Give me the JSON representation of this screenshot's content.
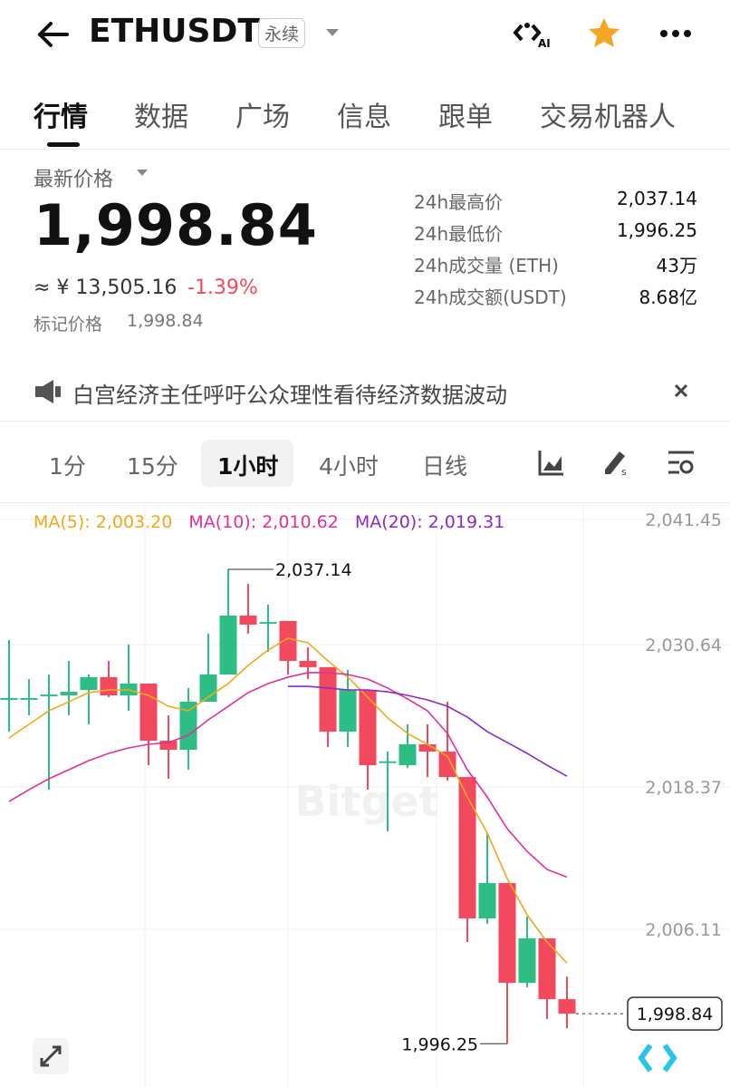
{
  "header": {
    "title": "ETHUSDT",
    "tag": "永续"
  },
  "tabs": [
    "行情",
    "数据",
    "广场",
    "信息",
    "跟单",
    "交易机器人"
  ],
  "price": {
    "label": "最新价格",
    "last": "1,998.84",
    "cny": "≈ ¥ 13,505.16",
    "change": "-1.39%",
    "mark_label": "标记价格",
    "mark_value": "1,998.84"
  },
  "stats": [
    [
      "24h最高价",
      "2,037.14"
    ],
    [
      "24h最低价",
      "1,996.25"
    ],
    [
      "24h成交量 (ETH)",
      "43万"
    ],
    [
      "24h成交额(USDT)",
      "8.68亿"
    ]
  ],
  "news": "白宫经济主任呼吁公众理性看待经济数据波动",
  "intervals": [
    "1分",
    "15分",
    "1小时",
    "4小时",
    "日线"
  ],
  "chart_data": {
    "type": "candlestick",
    "watermark": "Bitget",
    "ylim": [
      1993.3,
      2042.85
    ],
    "yticks": [
      {
        "value": 2041.45,
        "label": "2,041.45"
      },
      {
        "value": 2030.64,
        "label": "2,030.64"
      },
      {
        "value": 2018.37,
        "label": "2,018.37"
      },
      {
        "value": 2006.11,
        "label": "2,006.11"
      }
    ],
    "grid": true,
    "up_color": "#2ebd85",
    "down_color": "#f2495e",
    "candles": [
      {
        "open": 2025.97,
        "high": 2031.05,
        "low": 2023.15,
        "close": 2026.05
      },
      {
        "open": 2025.97,
        "high": 2027.69,
        "low": 2024.56,
        "close": 2026.05
      },
      {
        "open": 2026.28,
        "high": 2028.08,
        "low": 2018.15,
        "close": 2026.35
      },
      {
        "open": 2026.28,
        "high": 2029.25,
        "low": 2024.56,
        "close": 2026.59
      },
      {
        "open": 2026.75,
        "high": 2028.08,
        "low": 2023.78,
        "close": 2027.85
      },
      {
        "open": 2027.85,
        "high": 2029.25,
        "low": 2026.13,
        "close": 2026.28
      },
      {
        "open": 2026.28,
        "high": 2030.66,
        "low": 2024.95,
        "close": 2027.3
      },
      {
        "open": 2027.3,
        "high": 2027.3,
        "low": 2020.26,
        "close": 2022.37
      },
      {
        "open": 2022.37,
        "high": 2024.56,
        "low": 2019.09,
        "close": 2021.59
      },
      {
        "open": 2021.59,
        "high": 2026.91,
        "low": 2019.87,
        "close": 2025.73
      },
      {
        "open": 2025.73,
        "high": 2031.6,
        "low": 2025.73,
        "close": 2028.08
      },
      {
        "open": 2028.08,
        "high": 2037.14,
        "low": 2028.08,
        "close": 2033.16
      },
      {
        "open": 2033.16,
        "high": 2035.9,
        "low": 2031.6,
        "close": 2032.38
      },
      {
        "open": 2032.54,
        "high": 2034.1,
        "low": 2030.03,
        "close": 2032.6
      },
      {
        "open": 2032.69,
        "high": 2032.69,
        "low": 2028.08,
        "close": 2029.25
      },
      {
        "open": 2029.25,
        "high": 2030.43,
        "low": 2027.69,
        "close": 2028.71
      },
      {
        "open": 2028.71,
        "high": 2028.71,
        "low": 2021.83,
        "close": 2023.15
      },
      {
        "open": 2023.15,
        "high": 2028.47,
        "low": 2021.83,
        "close": 2026.75
      },
      {
        "open": 2026.75,
        "high": 2026.75,
        "low": 2018.15,
        "close": 2020.26
      },
      {
        "open": 2020.5,
        "high": 2021.43,
        "low": 2014.55,
        "close": 2020.6
      },
      {
        "open": 2020.26,
        "high": 2023.78,
        "low": 2020.03,
        "close": 2022.06
      },
      {
        "open": 2022.06,
        "high": 2023.78,
        "low": 2019.24,
        "close": 2021.43
      },
      {
        "open": 2021.43,
        "high": 2025.73,
        "low": 2018.93,
        "close": 2019.24
      },
      {
        "open": 2019.24,
        "high": 2019.24,
        "low": 2005.02,
        "close": 2007.05
      },
      {
        "open": 2007.05,
        "high": 2014.4,
        "low": 2006.58,
        "close": 2010.1
      },
      {
        "open": 2010.1,
        "high": 2010.1,
        "low": 1996.25,
        "close": 2001.5
      },
      {
        "open": 2001.5,
        "high": 2007.2,
        "low": 2001.11,
        "close": 2005.33
      },
      {
        "open": 2005.33,
        "high": 2005.33,
        "low": 1998.37,
        "close": 2000.09
      },
      {
        "open": 2000.09,
        "high": 2002.04,
        "low": 1997.59,
        "close": 1998.84
      }
    ],
    "series": [
      {
        "name": "MA(5): 2,003.20",
        "color": "#f0a81c",
        "values": [
          2022.61,
          2023.78,
          2024.95,
          2025.73,
          2026.52,
          2026.75,
          2026.75,
          2026.28,
          2025.34,
          2024.95,
          2026.13,
          2027.3,
          2028.86,
          2030.19,
          2031.21,
          2030.82,
          2029.25,
          2027.85,
          2026.13,
          2024.33,
          2023.0,
          2022.06,
          2021.04,
          2017.52,
          2014.4,
          2010.49,
          2007.36,
          2005.02,
          2003.2
        ]
      },
      {
        "name": "MA(10): 2,010.62",
        "color": "#e0309a",
        "values": [
          2017.13,
          2018.15,
          2019.09,
          2019.87,
          2020.65,
          2021.28,
          2021.75,
          2022.06,
          2022.22,
          2022.84,
          2024.17,
          2025.34,
          2026.52,
          2027.3,
          2027.85,
          2028.24,
          2028.24,
          2028.08,
          2027.69,
          2026.91,
          2025.97,
          2024.95,
          2023.0,
          2019.87,
          2017.52,
          2014.79,
          2012.83,
          2011.27,
          2010.62
        ]
      },
      {
        "name": "MA(20): 2,019.31",
        "color": "#8a2bc8",
        "values": [
          null,
          null,
          null,
          null,
          null,
          null,
          null,
          null,
          null,
          null,
          null,
          null,
          null,
          null,
          2027.06,
          2027.06,
          2026.91,
          2026.75,
          2026.75,
          2026.59,
          2026.28,
          2025.89,
          2025.34,
          2024.41,
          2023.15,
          2022.22,
          2021.28,
          2020.26,
          2019.31
        ]
      }
    ],
    "annotations": [
      {
        "candle": 11,
        "value": 2037.14,
        "label": "2,037.14"
      },
      {
        "candle": 25,
        "value": 1996.25,
        "label": "1,996.25"
      }
    ],
    "last_price": {
      "value": 1998.84,
      "label": "1,998.84"
    }
  }
}
